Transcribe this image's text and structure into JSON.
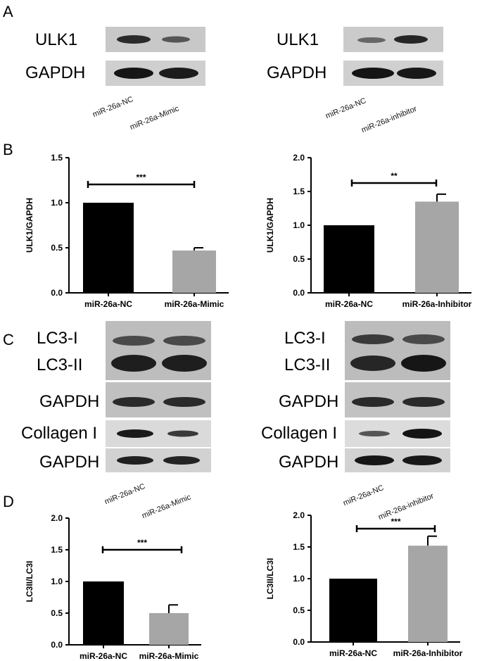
{
  "panels": {
    "A": "A",
    "B": "B",
    "C": "C",
    "D": "D"
  },
  "blots_A": {
    "left": {
      "rows": [
        "ULK1",
        "GAPDH"
      ],
      "lanes": [
        "miR-26a-NC",
        "miR-26a-Mimic"
      ]
    },
    "right": {
      "rows": [
        "ULK1",
        "GAPDH"
      ],
      "lanes": [
        "miR-26a-NC",
        "miR-26a-inhibitor"
      ]
    }
  },
  "blots_C": {
    "left": {
      "rows": [
        "LC3-I",
        "LC3-II",
        "GAPDH",
        "Collagen I",
        "GAPDH"
      ],
      "lanes": [
        "miR-26a-NC",
        "miR-26a-Mimic"
      ]
    },
    "right": {
      "rows": [
        "LC3-I",
        "LC3-II",
        "GAPDH",
        "Collagen I",
        "GAPDH"
      ],
      "lanes": [
        "miR-26a-NC",
        "miR-26a-inhibitor"
      ]
    }
  },
  "colors": {
    "nc_bar": "#000000",
    "treated_bar": "#a6a6a6"
  },
  "chart_data": [
    {
      "type": "bar",
      "panel": "B",
      "ylabel": "ULK1/GAPDH",
      "categories": [
        "miR-26a-NC",
        "miR-26a-Mimic"
      ],
      "values": [
        1.0,
        0.47
      ],
      "errors": [
        0,
        0.03
      ],
      "ylim": [
        0,
        1.5
      ],
      "yticks": [
        "0.0",
        "0.5",
        "1.0",
        "1.5"
      ],
      "significance": "***"
    },
    {
      "type": "bar",
      "panel": "B",
      "ylabel": "ULK1/GAPDH",
      "categories": [
        "miR-26a-NC",
        "miR-26a-Inhibitor"
      ],
      "values": [
        1.0,
        1.35
      ],
      "errors": [
        0,
        0.11
      ],
      "ylim": [
        0,
        2.0
      ],
      "yticks": [
        "0.0",
        "0.5",
        "1.0",
        "1.5",
        "2.0"
      ],
      "significance": "**"
    },
    {
      "type": "bar",
      "panel": "D",
      "ylabel": "LC3II/LC3I",
      "categories": [
        "miR-26a-NC",
        "miR-26a-Mimic"
      ],
      "values": [
        1.0,
        0.5
      ],
      "errors": [
        0,
        0.13
      ],
      "ylim": [
        0,
        2.0
      ],
      "yticks": [
        "0.0",
        "0.5",
        "1.0",
        "1.5",
        "2.0"
      ],
      "significance": "***"
    },
    {
      "type": "bar",
      "panel": "D",
      "ylabel": "LC3II/LC3I",
      "categories": [
        "miR-26a-NC",
        "miR-26a-Inhibitor"
      ],
      "values": [
        1.0,
        1.52
      ],
      "errors": [
        0,
        0.15
      ],
      "ylim": [
        0,
        2.0
      ],
      "yticks": [
        "0.0",
        "0.5",
        "1.0",
        "1.5",
        "2.0"
      ],
      "significance": "***"
    }
  ]
}
